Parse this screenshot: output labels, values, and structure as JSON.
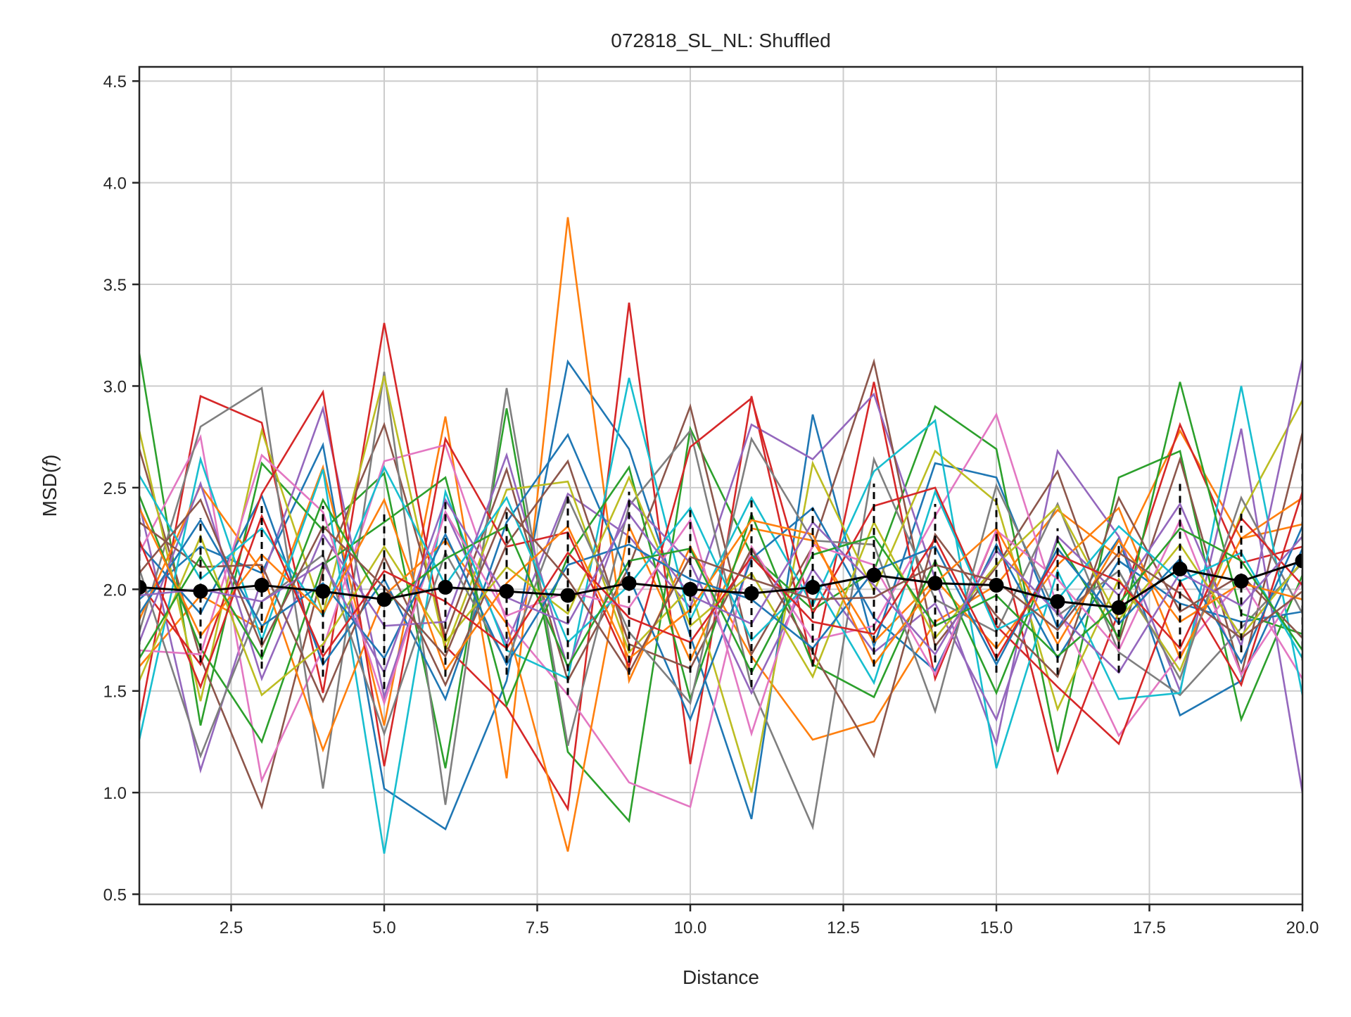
{
  "chart_data": {
    "type": "line",
    "title": "072818_SL_NL: Shuffled",
    "xlabel": "Distance",
    "ylabel": "MSD(f)",
    "ylabel_plain": "MSD(",
    "ylabel_italic": "f",
    "ylabel_close": ")",
    "xlim": [
      1,
      20
    ],
    "ylim": [
      0.45,
      4.57
    ],
    "xticks": [
      2.5,
      5.0,
      7.5,
      10.0,
      12.5,
      15.0,
      17.5,
      20.0
    ],
    "xtick_labels": [
      "2.5",
      "5.0",
      "7.5",
      "10.0",
      "12.5",
      "15.0",
      "17.5",
      "20.0"
    ],
    "yticks": [
      0.5,
      1.0,
      1.5,
      2.0,
      2.5,
      3.0,
      3.5,
      4.0,
      4.5
    ],
    "ytick_labels": [
      "0.5",
      "1.0",
      "1.5",
      "2.0",
      "2.5",
      "3.0",
      "3.5",
      "4.0",
      "4.5"
    ],
    "grid": true,
    "legend": "none",
    "x": [
      1,
      2,
      3,
      4,
      5,
      6,
      7,
      8,
      9,
      10,
      11,
      12,
      13,
      14,
      15,
      16,
      17,
      18,
      19,
      20
    ],
    "mean_series": {
      "color": "#000000",
      "values": [
        2.01,
        1.99,
        2.02,
        1.99,
        1.95,
        2.01,
        1.99,
        1.97,
        2.03,
        2.0,
        1.98,
        2.01,
        2.07,
        2.03,
        2.02,
        1.94,
        1.91,
        2.1,
        2.04,
        2.14
      ],
      "error_low": [
        1.67,
        1.64,
        1.61,
        1.57,
        1.51,
        1.57,
        1.58,
        1.48,
        1.58,
        1.59,
        1.52,
        1.62,
        1.62,
        1.64,
        1.59,
        1.58,
        1.59,
        1.66,
        1.69,
        1.65
      ],
      "error_high": [
        2.35,
        2.35,
        2.43,
        2.41,
        2.39,
        2.45,
        2.4,
        2.46,
        2.48,
        2.41,
        2.44,
        2.4,
        2.52,
        2.42,
        2.45,
        2.3,
        2.23,
        2.52,
        2.39,
        2.62
      ]
    },
    "palette": [
      "#1f77b4",
      "#ff7f0e",
      "#2ca02c",
      "#d62728",
      "#9467bd",
      "#8c564b",
      "#e377c2",
      "#7f7f7f",
      "#bcbd22",
      "#17becf"
    ],
    "series": [
      {
        "color": "#1f77b4",
        "values": [
          1.95,
          2.21,
          2.08,
          2.71,
          1.02,
          0.82,
          1.55,
          3.12,
          2.69,
          1.77,
          0.87,
          2.86,
          1.72,
          2.62,
          2.55,
          1.81,
          2.25,
          1.38,
          1.55,
          2.2
        ]
      },
      {
        "color": "#ff7f0e",
        "values": [
          1.62,
          1.97,
          1.8,
          2.6,
          1.33,
          2.85,
          1.07,
          3.83,
          1.55,
          2.21,
          1.67,
          1.26,
          1.35,
          1.84,
          2.02,
          2.39,
          2.16,
          2.78,
          2.25,
          2.32
        ]
      },
      {
        "color": "#2ca02c",
        "values": [
          3.16,
          1.33,
          2.62,
          2.29,
          2.57,
          1.12,
          2.89,
          1.2,
          0.86,
          2.79,
          2.17,
          1.9,
          2.09,
          2.9,
          2.69,
          1.2,
          2.55,
          2.68,
          1.36,
          2.07
        ]
      },
      {
        "color": "#d62728",
        "values": [
          1.35,
          2.95,
          2.82,
          1.49,
          3.31,
          1.72,
          1.42,
          0.92,
          3.41,
          1.14,
          2.95,
          1.62,
          3.02,
          1.56,
          2.29,
          1.1,
          1.89,
          2.81,
          2.13,
          2.21
        ]
      },
      {
        "color": "#9467bd",
        "values": [
          2.42,
          1.11,
          2.05,
          2.89,
          1.47,
          2.38,
          1.73,
          2.47,
          2.26,
          1.91,
          2.81,
          2.64,
          2.96,
          2.05,
          1.24,
          2.68,
          2.26,
          1.5,
          2.79,
          1.0
        ]
      },
      {
        "color": "#8c564b",
        "values": [
          2.69,
          1.66,
          0.93,
          2.09,
          2.81,
          1.77,
          2.59,
          1.55,
          2.11,
          2.9,
          1.68,
          2.21,
          3.12,
          1.72,
          2.11,
          2.58,
          1.74,
          2.64,
          1.58,
          2.77
        ]
      },
      {
        "color": "#e377c2",
        "values": [
          2.18,
          2.75,
          1.06,
          1.71,
          2.63,
          2.71,
          1.84,
          1.48,
          1.05,
          0.93,
          2.21,
          1.75,
          1.82,
          2.36,
          2.86,
          1.91,
          1.28,
          1.68,
          2.05,
          1.56
        ]
      },
      {
        "color": "#7f7f7f",
        "values": [
          1.79,
          2.8,
          2.99,
          1.02,
          3.07,
          0.94,
          2.99,
          1.23,
          2.41,
          2.78,
          1.52,
          0.83,
          2.64,
          1.95,
          1.79,
          2.42,
          1.69,
          1.48,
          1.81,
          2.13
        ]
      },
      {
        "color": "#bcbd22",
        "values": [
          2.78,
          1.45,
          2.78,
          1.88,
          3.05,
          1.7,
          2.49,
          2.53,
          1.69,
          2.01,
          1.0,
          2.62,
          1.99,
          2.68,
          2.43,
          1.41,
          2.05,
          1.6,
          2.37,
          2.93
        ]
      },
      {
        "color": "#17becf",
        "values": [
          1.26,
          2.64,
          1.75,
          2.59,
          0.7,
          2.48,
          1.7,
          1.56,
          3.04,
          1.85,
          2.45,
          1.92,
          2.58,
          2.83,
          1.12,
          2.09,
          1.46,
          1.49,
          3.0,
          1.48
        ]
      },
      {
        "color": "#1f77b4",
        "values": [
          2.22,
          1.88,
          2.46,
          1.63,
          2.05,
          1.46,
          2.33,
          2.76,
          2.06,
          1.36,
          2.15,
          2.4,
          1.86,
          1.6,
          2.22,
          1.66,
          2.14,
          1.93,
          1.84,
          1.89
        ]
      },
      {
        "color": "#ff7f0e",
        "values": [
          1.85,
          2.51,
          2.09,
          1.21,
          1.97,
          2.24,
          1.83,
          0.71,
          2.31,
          1.65,
          2.3,
          2.24,
          1.74,
          2.05,
          1.71,
          2.12,
          2.4,
          1.66,
          2.25,
          2.45
        ]
      },
      {
        "color": "#2ca02c",
        "values": [
          2.46,
          1.71,
          1.25,
          2.12,
          2.33,
          2.55,
          1.43,
          2.16,
          2.6,
          1.46,
          2.37,
          1.63,
          1.47,
          2.14,
          1.49,
          2.24,
          1.76,
          3.02,
          1.88,
          1.78
        ]
      },
      {
        "color": "#d62728",
        "values": [
          2.03,
          1.63,
          2.47,
          2.97,
          1.13,
          2.74,
          2.21,
          2.28,
          1.62,
          2.7,
          2.94,
          1.88,
          2.41,
          2.5,
          1.82,
          1.52,
          1.24,
          2.04,
          1.53,
          2.48
        ]
      },
      {
        "color": "#9467bd",
        "values": [
          1.74,
          2.52,
          1.56,
          2.27,
          1.82,
          1.84,
          2.66,
          1.61,
          2.44,
          2.13,
          1.49,
          2.1,
          1.69,
          1.93,
          1.36,
          2.26,
          1.97,
          2.42,
          1.72,
          3.13
        ]
      },
      {
        "color": "#8c564b",
        "values": [
          2.33,
          2.11,
          2.12,
          1.45,
          2.16,
          1.53,
          2.22,
          2.63,
          1.73,
          1.61,
          2.2,
          1.69,
          1.18,
          2.27,
          1.87,
          1.57,
          2.45,
          1.89,
          2.07,
          1.76
        ]
      },
      {
        "color": "#e377c2",
        "values": [
          1.7,
          1.68,
          2.66,
          2.38,
          1.44,
          2.38,
          1.87,
          1.99,
          1.91,
          2.34,
          1.29,
          2.22,
          2.12,
          1.58,
          2.29,
          2.05,
          1.7,
          2.34,
          1.58,
          2.04
        ]
      },
      {
        "color": "#7f7f7f",
        "values": [
          2.1,
          1.18,
          1.94,
          2.17,
          1.29,
          2.18,
          1.64,
          2.45,
          1.79,
          1.44,
          2.74,
          2.24,
          2.22,
          1.4,
          2.51,
          1.87,
          2.09,
          1.56,
          2.45,
          1.88
        ]
      },
      {
        "color": "#bcbd22",
        "values": [
          1.55,
          2.26,
          1.48,
          1.73,
          2.21,
          1.74,
          2.11,
          1.88,
          2.55,
          1.82,
          2.08,
          1.57,
          2.33,
          1.76,
          2.12,
          2.41,
          1.85,
          2.22,
          1.77,
          2.14
        ]
      },
      {
        "color": "#17becf",
        "values": [
          2.56,
          2.05,
          2.3,
          1.87,
          2.6,
          2.02,
          2.45,
          1.74,
          2.02,
          2.4,
          1.75,
          2.05,
          1.54,
          2.48,
          1.8,
          1.95,
          2.31,
          2.04,
          2.18,
          1.66
        ]
      },
      {
        "color": "#1f77b4",
        "values": [
          1.88,
          2.34,
          1.82,
          2.03,
          1.66,
          2.27,
          1.63,
          2.12,
          2.22,
          2.05,
          1.95,
          1.71,
          2.09,
          2.21,
          1.63,
          2.2,
          1.83,
          2.15,
          1.64,
          2.31
        ]
      },
      {
        "color": "#ff7f0e",
        "values": [
          2.4,
          1.77,
          2.17,
          1.88,
          2.44,
          1.6,
          2.03,
          2.31,
          1.66,
          1.9,
          2.34,
          2.27,
          1.63,
          2.03,
          2.3,
          1.73,
          2.24,
          1.84,
          2.03,
          1.95
        ]
      },
      {
        "color": "#2ca02c",
        "values": [
          1.66,
          2.16,
          1.66,
          2.44,
          1.92,
          2.15,
          2.31,
          1.62,
          2.14,
          2.2,
          1.59,
          2.17,
          2.26,
          1.82,
          1.97,
          1.67,
          1.93,
          2.3,
          2.14,
          1.7
        ]
      },
      {
        "color": "#d62728",
        "values": [
          2.24,
          1.52,
          2.36,
          1.67,
          2.09,
          1.94,
          1.71,
          2.18,
          1.86,
          1.74,
          2.16,
          1.84,
          1.78,
          2.25,
          1.66,
          2.17,
          2.04,
          1.71,
          2.35,
          2.02
        ]
      },
      {
        "color": "#9467bd",
        "values": [
          1.97,
          2.0,
          1.94,
          2.13,
          1.59,
          2.44,
          1.96,
          1.83,
          2.37,
          1.97,
          1.83,
          2.33,
          2.02,
          1.68,
          2.19,
          1.88,
          1.59,
          2.08,
          1.92,
          2.26
        ]
      },
      {
        "color": "#8c564b",
        "values": [
          2.08,
          2.44,
          1.72,
          2.31,
          2.01,
          1.67,
          2.4,
          2.05,
          1.59,
          2.16,
          2.05,
          1.95,
          1.96,
          2.12,
          2.04,
          1.8,
          2.18,
          1.98,
          1.76,
          1.99
        ]
      }
    ]
  }
}
